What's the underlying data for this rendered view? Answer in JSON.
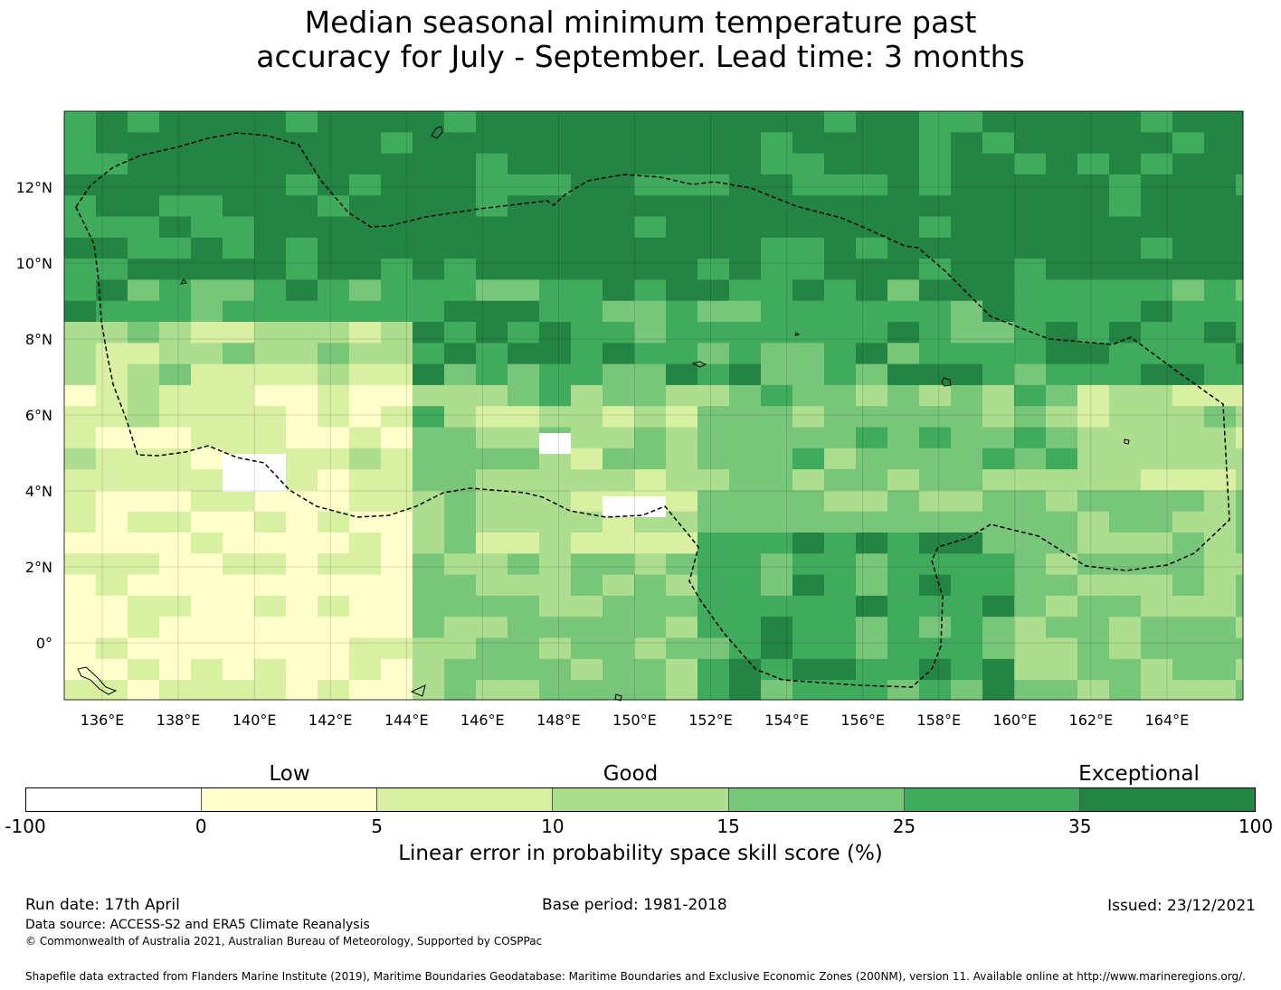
{
  "title": {
    "line1": "Median seasonal minimum temperature past",
    "line2": "accuracy for July - September. Lead time: 3 months"
  },
  "map": {
    "lon_range": [
      135,
      166
    ],
    "lat_range": [
      -1.5,
      14
    ],
    "grid_lon_step": 2,
    "grid_lat_step": 2,
    "x_ticks": [
      "136°E",
      "138°E",
      "140°E",
      "142°E",
      "144°E",
      "146°E",
      "148°E",
      "150°E",
      "152°E",
      "154°E",
      "156°E",
      "158°E",
      "160°E",
      "162°E",
      "164°E"
    ],
    "y_ticks": [
      "12°N",
      "10°N",
      "8°N",
      "6°N",
      "4°N",
      "2°N",
      "0°"
    ]
  },
  "legend": {
    "categories": [
      "Low",
      "Good",
      "Exceptional"
    ],
    "ticks": [
      "-100",
      "0",
      "5",
      "10",
      "15",
      "25",
      "35",
      "100"
    ],
    "colors": [
      "#ffffff",
      "#ffffcc",
      "#d9f0a3",
      "#addd8e",
      "#78c679",
      "#41ab5d",
      "#238443"
    ],
    "label": "Linear error in probability space skill score (%)"
  },
  "footer": {
    "run_date": "Run date: 17th April",
    "base_period": "Base period: 1981-2018",
    "issued": "Issued: 23/12/2021",
    "data_source": "Data source: ACCESS-S2 and ERA5 Climate Reanalysis",
    "copyright": "© Commonwealth of Australia 2021, Australian Bureau of Meteorology, Supported by COSPPac",
    "shapefile": "Shapefile data extracted from Flanders Marine Institute (2019), Maritime Boundaries Geodatabase: Maritime Boundaries and Exclusive Economic Zones (200NM), version 11. Available online at http://www.marineregions.org/."
  }
}
